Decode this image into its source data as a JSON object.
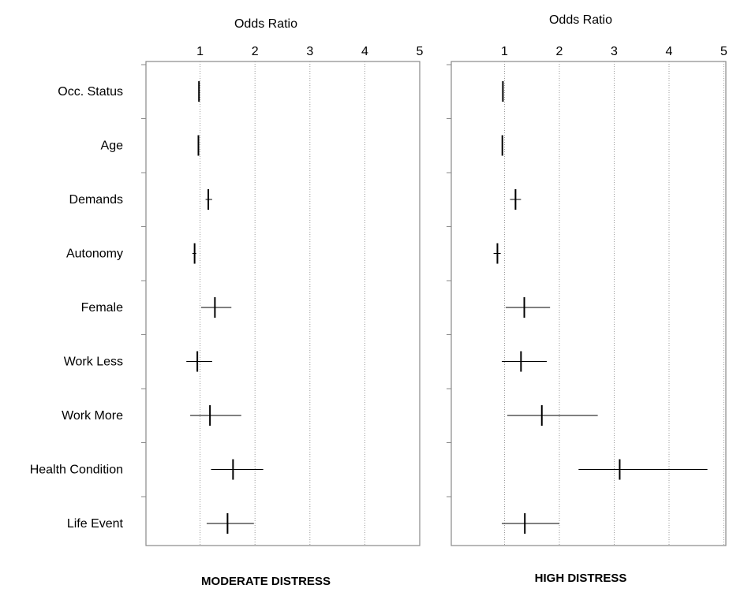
{
  "chart_data": [
    {
      "type": "forest",
      "title": "MODERATE DISTRESS",
      "xlabel": "Odds Ratio",
      "xlim": [
        0,
        5
      ],
      "xticks": [
        1,
        2,
        3,
        4,
        5
      ],
      "grid": "vertical dotted",
      "categories": [
        "Occ. Status",
        "Age",
        "Demands",
        "Autonomy",
        "Female",
        "Work Less",
        "Work More",
        "Health Condition",
        "Life Event"
      ],
      "estimates": [
        0.98,
        0.97,
        1.15,
        0.9,
        1.27,
        0.95,
        1.18,
        1.6,
        1.5
      ],
      "lower": [
        0.97,
        0.96,
        1.1,
        0.86,
        1.02,
        0.75,
        0.82,
        1.2,
        1.12
      ],
      "upper": [
        0.99,
        0.98,
        1.22,
        0.93,
        1.57,
        1.22,
        1.75,
        2.15,
        1.98
      ]
    },
    {
      "type": "forest",
      "title": "HIGH DISTRESS",
      "xlabel": "Odds Ratio",
      "xlim": [
        0,
        5
      ],
      "xticks": [
        1,
        2,
        3,
        4,
        5
      ],
      "grid": "vertical dotted",
      "categories": [
        "Occ. Status",
        "Age",
        "Demands",
        "Autonomy",
        "Female",
        "Work Less",
        "Work More",
        "Health Condition",
        "Life Event"
      ],
      "estimates": [
        0.97,
        0.96,
        1.2,
        0.87,
        1.36,
        1.3,
        1.68,
        3.1,
        1.37
      ],
      "lower": [
        0.96,
        0.95,
        1.1,
        0.8,
        1.02,
        0.95,
        1.05,
        2.35,
        0.95
      ],
      "upper": [
        0.98,
        0.97,
        1.3,
        0.93,
        1.83,
        1.77,
        2.7,
        4.7,
        2.0
      ]
    }
  ]
}
